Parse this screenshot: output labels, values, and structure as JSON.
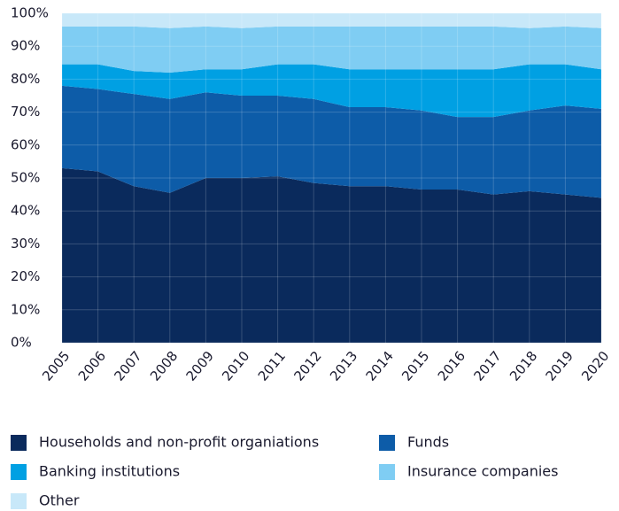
{
  "chart_data": {
    "type": "stacked_area",
    "categories": [
      "2005",
      "2006",
      "2007",
      "2008",
      "2009",
      "2010",
      "2011",
      "2012",
      "2013",
      "2014",
      "2015",
      "2016",
      "2017",
      "2018",
      "2019",
      "2020"
    ],
    "series": [
      {
        "name": "Households and non-profit organiations",
        "color": "#0a2a5c",
        "values": [
          53,
          52,
          47.5,
          45.5,
          50,
          50,
          50.5,
          48.5,
          47.5,
          47.5,
          46.5,
          46.5,
          45,
          46,
          45,
          44
        ]
      },
      {
        "name": "Funds",
        "color": "#0d5ca8",
        "values": [
          25,
          25,
          28,
          28.5,
          26,
          25,
          24.5,
          25.5,
          24,
          24,
          24,
          22,
          23.5,
          24.5,
          27,
          27
        ]
      },
      {
        "name": "Banking institutions",
        "color": "#00a0e3",
        "values": [
          6.5,
          7.5,
          7,
          8,
          7,
          8,
          9.5,
          10.5,
          11.5,
          11.5,
          12.5,
          14.5,
          14.5,
          14,
          12.5,
          12
        ]
      },
      {
        "name": "Insurance companies",
        "color": "#7fcdf3",
        "values": [
          11.5,
          11.5,
          13.5,
          13.5,
          13,
          12.5,
          11.5,
          11.5,
          13,
          13,
          13,
          13,
          13,
          11,
          11.5,
          12.5
        ]
      },
      {
        "name": "Other",
        "color": "#c8e8f9",
        "values": [
          4,
          4,
          4,
          4.5,
          4,
          4.5,
          4,
          4,
          4,
          4,
          4,
          4,
          4,
          4.5,
          4,
          4.5
        ]
      }
    ],
    "ylim": [
      0,
      100
    ],
    "yticks": [
      {
        "value": 0,
        "label": "0%"
      },
      {
        "value": 10,
        "label": "10%"
      },
      {
        "value": 20,
        "label": "20%"
      },
      {
        "value": 30,
        "label": "30%"
      },
      {
        "value": 40,
        "label": "40%"
      },
      {
        "value": 50,
        "label": "50%"
      },
      {
        "value": 60,
        "label": "60%"
      },
      {
        "value": 70,
        "label": "70%"
      },
      {
        "value": 80,
        "label": "80%"
      },
      {
        "value": 90,
        "label": "90%"
      },
      {
        "value": 100,
        "label": "100%"
      }
    ],
    "grid": true
  }
}
